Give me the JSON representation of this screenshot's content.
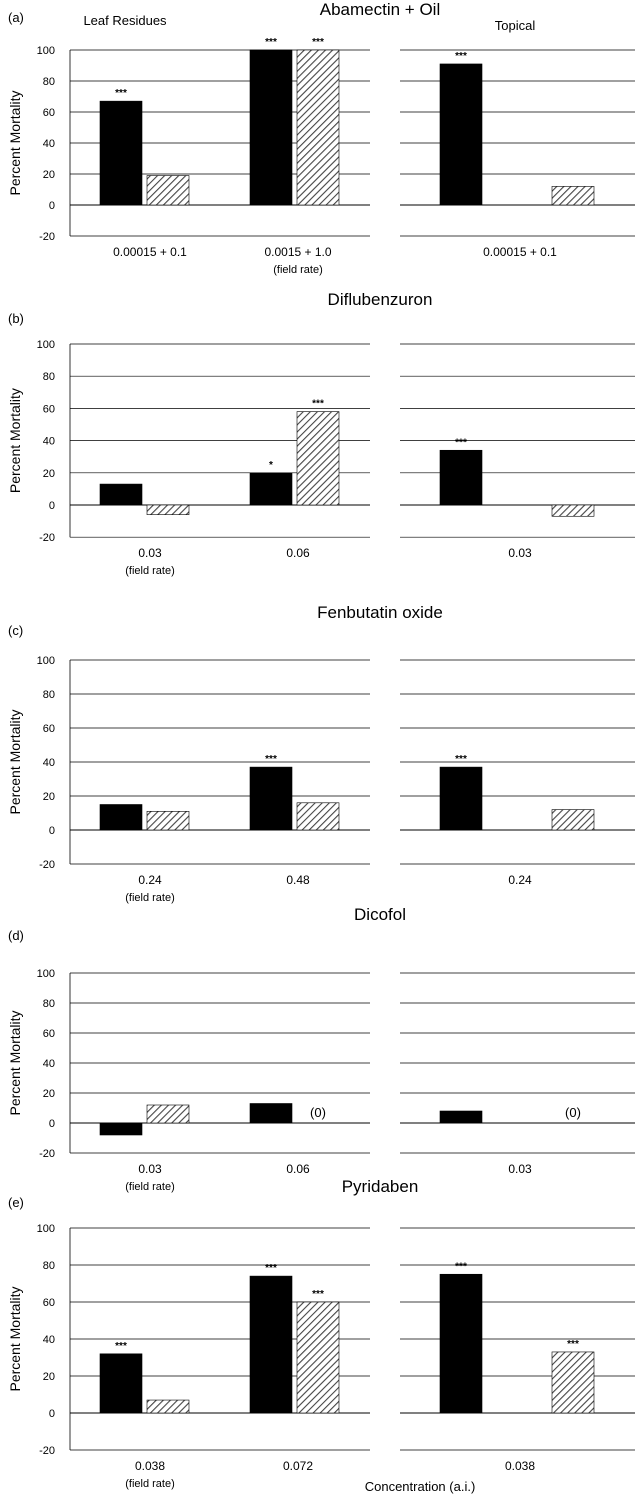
{
  "x_axis_label": "Concentration (a.i.)",
  "subtitles": {
    "left": "Leaf Residues",
    "right": "Topical"
  },
  "colors": {
    "series_a": "#000000",
    "series_b_hatch": "#444444",
    "gridline": "#000000"
  },
  "chart_data": [
    {
      "panel": "(a)",
      "title": "Abamectin + Oil",
      "type": "bar",
      "ylabel": "Percent Mortality",
      "ylim": [
        -20,
        100
      ],
      "yticks": [
        "100",
        "80",
        "60",
        "40",
        "20",
        "0",
        "-20"
      ],
      "groups": [
        {
          "side": "left",
          "label": "0.00015 + 0.1",
          "note": "",
          "values": [
            67,
            19
          ],
          "sig": [
            "***",
            ""
          ],
          "zero_note": [
            "",
            ""
          ]
        },
        {
          "side": "left",
          "label": "0.0015 + 1.0",
          "note": "(field rate)",
          "values": [
            100,
            100
          ],
          "sig": [
            "***",
            "***"
          ],
          "zero_note": [
            "",
            ""
          ]
        },
        {
          "side": "right",
          "label": "0.00015 + 0.1",
          "note": "",
          "values": [
            91,
            12
          ],
          "sig": [
            "***",
            ""
          ],
          "zero_note": [
            "",
            ""
          ]
        }
      ]
    },
    {
      "panel": "(b)",
      "title": "Diflubenzuron",
      "type": "bar",
      "ylabel": "Percent Mortality",
      "ylim": [
        -20,
        100
      ],
      "yticks": [
        "100",
        "80",
        "60",
        "40",
        "20",
        "0",
        "-20"
      ],
      "groups": [
        {
          "side": "left",
          "label": "0.03",
          "note": "(field rate)",
          "values": [
            13,
            -6
          ],
          "sig": [
            "",
            ""
          ],
          "zero_note": [
            "",
            ""
          ]
        },
        {
          "side": "left",
          "label": "0.06",
          "note": "",
          "values": [
            20,
            58
          ],
          "sig": [
            "*",
            "***"
          ],
          "zero_note": [
            "",
            ""
          ]
        },
        {
          "side": "right",
          "label": "0.03",
          "note": "",
          "values": [
            34,
            -7
          ],
          "sig": [
            "***",
            ""
          ],
          "zero_note": [
            "",
            ""
          ]
        }
      ]
    },
    {
      "panel": "(c)",
      "title": "Fenbutatin oxide",
      "type": "bar",
      "ylabel": "Percent Mortality",
      "ylim": [
        -20,
        100
      ],
      "yticks": [
        "100",
        "80",
        "60",
        "40",
        "20",
        "0",
        "-20"
      ],
      "groups": [
        {
          "side": "left",
          "label": "0.24",
          "note": "(field rate)",
          "values": [
            15,
            11
          ],
          "sig": [
            "",
            ""
          ],
          "zero_note": [
            "",
            ""
          ]
        },
        {
          "side": "left",
          "label": "0.48",
          "note": "",
          "values": [
            37,
            16
          ],
          "sig": [
            "***",
            ""
          ],
          "zero_note": [
            "",
            ""
          ]
        },
        {
          "side": "right",
          "label": "0.24",
          "note": "",
          "values": [
            37,
            12
          ],
          "sig": [
            "***",
            ""
          ],
          "zero_note": [
            "",
            ""
          ]
        }
      ]
    },
    {
      "panel": "(d)",
      "title": "Dicofol",
      "type": "bar",
      "ylabel": "Percent Mortality",
      "ylim": [
        -20,
        100
      ],
      "yticks": [
        "100",
        "80",
        "60",
        "40",
        "20",
        "0",
        "-20"
      ],
      "groups": [
        {
          "side": "left",
          "label": "0.03",
          "note": "(field rate)",
          "values": [
            -8,
            12
          ],
          "sig": [
            "",
            ""
          ],
          "zero_note": [
            "",
            ""
          ]
        },
        {
          "side": "left",
          "label": "0.06",
          "note": "",
          "values": [
            13,
            0
          ],
          "sig": [
            "",
            ""
          ],
          "zero_note": [
            "",
            "(0)"
          ]
        },
        {
          "side": "right",
          "label": "0.03",
          "note": "",
          "values": [
            8,
            0
          ],
          "sig": [
            "",
            ""
          ],
          "zero_note": [
            "",
            "(0)"
          ]
        }
      ]
    },
    {
      "panel": "(e)",
      "title": "Pyridaben",
      "type": "bar",
      "ylabel": "Percent Mortality",
      "ylim": [
        -20,
        100
      ],
      "yticks": [
        "100",
        "80",
        "60",
        "40",
        "20",
        "0",
        "-20"
      ],
      "groups": [
        {
          "side": "left",
          "label": "0.038",
          "note": "(field rate)",
          "values": [
            32,
            7
          ],
          "sig": [
            "***",
            ""
          ],
          "zero_note": [
            "",
            ""
          ]
        },
        {
          "side": "left",
          "label": "0.072",
          "note": "",
          "values": [
            74,
            60
          ],
          "sig": [
            "***",
            "***"
          ],
          "zero_note": [
            "",
            ""
          ]
        },
        {
          "side": "right",
          "label": "0.038",
          "note": "",
          "values": [
            75,
            33
          ],
          "sig": [
            "***",
            "***"
          ],
          "zero_note": [
            "",
            ""
          ]
        }
      ]
    }
  ]
}
